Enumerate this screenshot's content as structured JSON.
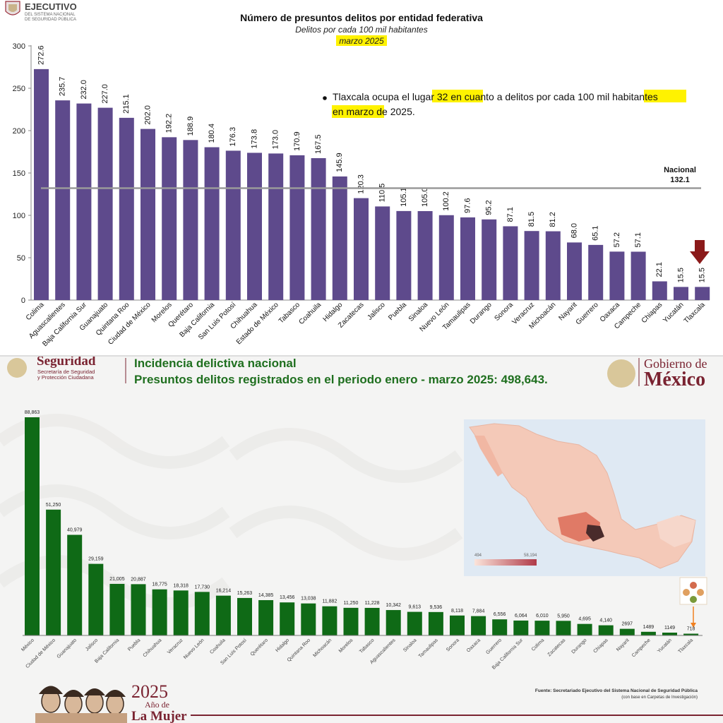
{
  "top": {
    "logo_title": "EJECUTIVO",
    "logo_sub1": "DEL SISTEMA NACIONAL",
    "logo_sub2": "DE SEGURIDAD PÚBLICA",
    "title": "Número de presuntos delitos por entidad federativa",
    "subtitle": "Delitos por cada 100 mil habitantes",
    "period": "marzo 2025",
    "note_parts": [
      "Tlaxcala ocupa el ",
      "lugar 32",
      " en cuanto a delitos por cada ",
      "100 mil habitantes",
      " en marzo de 2025."
    ],
    "national_label": "Nacional",
    "national_value": "132.1"
  },
  "bottom": {
    "logo_main": "Seguridad",
    "logo_sub1": "Secretaría de Seguridad",
    "logo_sub2": "y Protección Ciudadana",
    "title1": "Incidencia delictiva nacional",
    "title2": "Presuntos delitos registrados en el periodo enero - marzo 2025: 498,643.",
    "gov_top": "Gobierno de",
    "gov_main": "México",
    "map_min": "494",
    "map_max": "58,194",
    "source1": "Fuente: Secretariado Ejecutivo del Sistema Nacional de Seguridad Pública",
    "source2": "(con base en Carpetas de Investigación)",
    "year": "2025",
    "year_sub": "Año de",
    "year_main": "La Mujer"
  },
  "colors": {
    "purple": "#5e4a8c",
    "green": "#0f6a16",
    "highlight": "#fff200",
    "national_line": "#9a9a9a",
    "arrow": "#8b1a1a",
    "title_green": "#1f6f1f",
    "maroon": "#7a2331"
  },
  "chart_data": [
    {
      "type": "bar",
      "title": "Número de presuntos delitos por entidad federativa",
      "subtitle": "Delitos por cada 100 mil habitantes",
      "ylim": [
        0,
        300
      ],
      "yticks": [
        0,
        50,
        100,
        150,
        200,
        250,
        300
      ],
      "reference_line": {
        "label": "Nacional",
        "value": 132.1
      },
      "categories": [
        "Colima",
        "Aguascalientes",
        "Baja California Sur",
        "Guanajuato",
        "Quintana Roo",
        "Ciudad de México",
        "Morelos",
        "Querétaro",
        "Baja California",
        "San Luis Potosí",
        "Chihuahua",
        "Estado de México",
        "Tabasco",
        "Coahuila",
        "Hidalgo",
        "Zacatecas",
        "Jalisco",
        "Puebla",
        "Sinaloa",
        "Nuevo León",
        "Tamaulipas",
        "Durango",
        "Sonora",
        "Veracruz",
        "Michoacán",
        "Nayarit",
        "Guerrero",
        "Oaxaca",
        "Campeche",
        "Chiapas",
        "Yucatán",
        "Tlaxcala"
      ],
      "values": [
        272.6,
        235.7,
        232.0,
        227.0,
        215.1,
        202.0,
        192.2,
        188.9,
        180.4,
        176.3,
        173.8,
        173.0,
        170.9,
        167.5,
        145.9,
        120.3,
        110.5,
        105.1,
        105.0,
        100.2,
        97.6,
        95.2,
        87.1,
        81.5,
        81.2,
        68.0,
        65.1,
        57.2,
        57.1,
        22.1,
        15.5,
        15.5
      ],
      "labels": [
        "272.6",
        "235.7",
        "232.0",
        "227.0",
        "215.1",
        "202.0",
        "192.2",
        "188.9",
        "180.4",
        "176.3",
        "173.8",
        "173.0",
        "170.9",
        "167.5",
        "145.9",
        "120.3",
        "110.5",
        "105.1",
        "105.0",
        "100.2",
        "97.6",
        "95.2",
        "87.1",
        "81.5",
        "81.2",
        "68.0",
        "65.1",
        "57.2",
        "57.1",
        "22.1",
        "15.5",
        "15.5"
      ]
    },
    {
      "type": "bar",
      "title": "Presuntos delitos registrados en el periodo enero - marzo 2025: 498,643.",
      "categories": [
        "México",
        "Ciudad de México",
        "Guanajuato",
        "Jalisco",
        "Baja California",
        "Puebla",
        "Chihuahua",
        "Veracruz",
        "Nuevo León",
        "Coahuila",
        "San Luis Potosí",
        "Querétaro",
        "Hidalgo",
        "Quintana Roo",
        "Michoacán",
        "Morelos",
        "Tabasco",
        "Aguascalientes",
        "Sinaloa",
        "Tamaulipas",
        "Sonora",
        "Oaxaca",
        "Guerrero",
        "Baja California Sur",
        "Colima",
        "Zacatecas",
        "Durango",
        "Chiapas",
        "Nayarit",
        "Campeche",
        "Yucatán",
        "Tlaxcala"
      ],
      "values": [
        88863,
        51250,
        40979,
        29159,
        21005,
        20887,
        18775,
        18318,
        17730,
        16214,
        15263,
        14385,
        13456,
        13038,
        11882,
        11250,
        11228,
        10342,
        9613,
        9536,
        8118,
        7884,
        6556,
        6064,
        6010,
        5950,
        4695,
        4140,
        2697,
        1489,
        1149,
        718
      ],
      "labels": [
        "88,863",
        "51,250",
        "40,979",
        "29,159",
        "21,005",
        "20,887",
        "18,775",
        "18,318",
        "17,730",
        "16,214",
        "15,263",
        "14,385",
        "13,456",
        "13,038",
        "11,882",
        "11,250",
        "11,228",
        "10,342",
        "9,613",
        "9,536",
        "8,118",
        "7,884",
        "6,556",
        "6,064",
        "6,010",
        "5,950",
        "4,695",
        "4,140",
        "2697",
        "1489",
        "1149",
        "718"
      ],
      "ylim": [
        0,
        90000
      ]
    }
  ]
}
